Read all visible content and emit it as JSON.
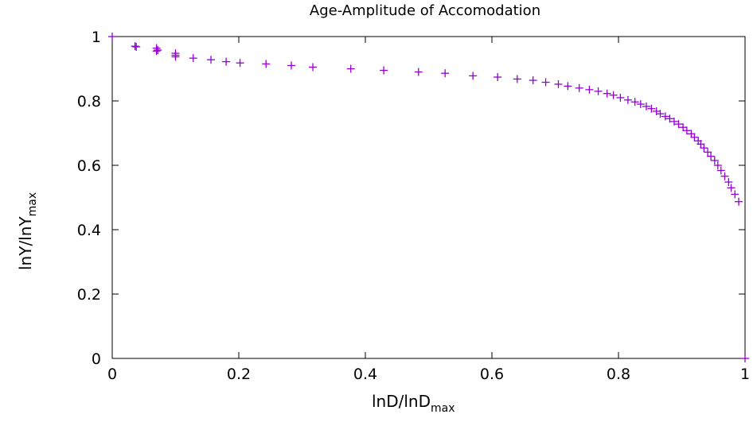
{
  "chart_data": {
    "type": "scatter",
    "title": "Age-Amplitude of Accomodation",
    "xlabel": "lnD/lnD",
    "xlabel_subscript": "max",
    "ylabel": "lnY/lnY",
    "ylabel_subscript": "max",
    "xlim": [
      0,
      1
    ],
    "ylim": [
      0,
      1
    ],
    "xticks": [
      0,
      0.2,
      0.4,
      0.6,
      0.8,
      1
    ],
    "xtick_labels": [
      "0",
      "0.2",
      "0.4",
      "0.6",
      "0.8",
      "1"
    ],
    "yticks": [
      0,
      0.2,
      0.4,
      0.6,
      0.8,
      1
    ],
    "ytick_labels": [
      "0",
      "0.2",
      "0.4",
      "0.6",
      "0.8",
      "1"
    ],
    "grid": false,
    "legend": "none",
    "marker": "plus",
    "color": "#9400d3",
    "series": [
      {
        "x": [
          0,
          0.036,
          0.038,
          0.07,
          0.072,
          0.07,
          0.1,
          0.1,
          0.1,
          0.128,
          0.156,
          0.18,
          0.202,
          0.243,
          0.283,
          0.317,
          0.377,
          0.429,
          0.484,
          0.526,
          0.57,
          0.609,
          0.64,
          0.665,
          0.685,
          0.705,
          0.72,
          0.738,
          0.754,
          0.768,
          0.782,
          0.792,
          0.803,
          0.815,
          0.826,
          0.835,
          0.844,
          0.852,
          0.86,
          0.866,
          0.874,
          0.881,
          0.888,
          0.895,
          0.902,
          0.908,
          0.915,
          0.92,
          0.926,
          0.93,
          0.935,
          0.941,
          0.946,
          0.952,
          0.957,
          0.962,
          0.968,
          0.974,
          0.978,
          0.984,
          0.99,
          1.0
        ],
        "y": [
          1,
          0.97,
          0.968,
          0.964,
          0.958,
          0.955,
          0.948,
          0.942,
          0.937,
          0.933,
          0.928,
          0.922,
          0.918,
          0.915,
          0.91,
          0.905,
          0.9,
          0.895,
          0.89,
          0.886,
          0.878,
          0.874,
          0.868,
          0.864,
          0.858,
          0.852,
          0.846,
          0.84,
          0.835,
          0.83,
          0.823,
          0.818,
          0.81,
          0.803,
          0.797,
          0.79,
          0.783,
          0.776,
          0.768,
          0.76,
          0.752,
          0.745,
          0.736,
          0.728,
          0.718,
          0.708,
          0.698,
          0.687,
          0.676,
          0.666,
          0.654,
          0.641,
          0.628,
          0.615,
          0.6,
          0.584,
          0.566,
          0.548,
          0.53,
          0.51,
          0.487,
          0
        ]
      }
    ]
  }
}
